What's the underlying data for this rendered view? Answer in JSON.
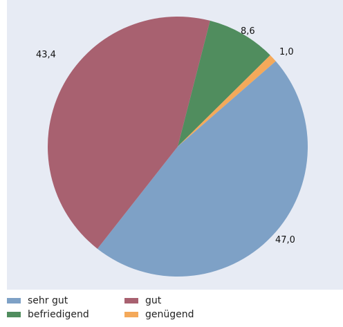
{
  "chart_data": {
    "type": "pie",
    "slices": [
      {
        "label": "sehr gut",
        "value": 47.0,
        "display": "47,0",
        "color": "#7ea1c6"
      },
      {
        "label": "gut",
        "value": 43.4,
        "display": "43,4",
        "color": "#a86170"
      },
      {
        "label": "befriedigend",
        "value": 8.6,
        "display": "8,6",
        "color": "#508d5e"
      },
      {
        "label": "genügend",
        "value": 1.0,
        "display": "1,0",
        "color": "#f4a95a"
      }
    ],
    "legend": "bottom"
  }
}
